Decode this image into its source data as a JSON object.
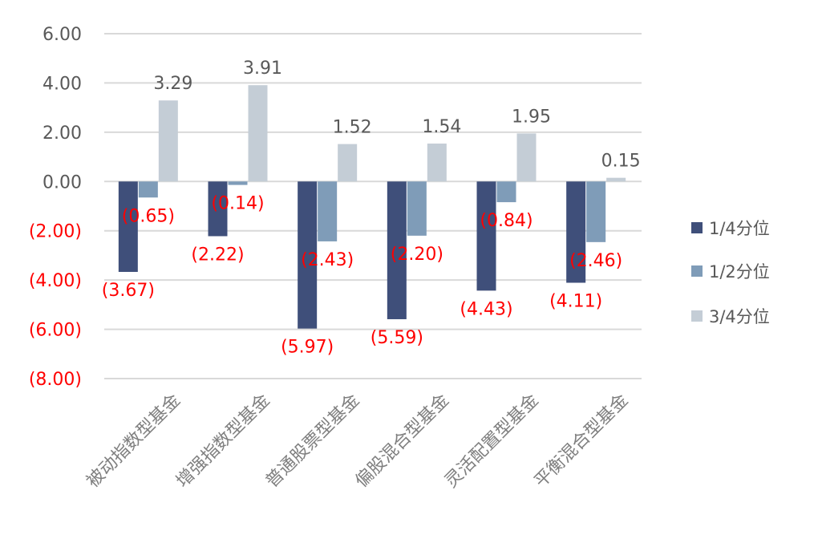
{
  "chart_data": {
    "type": "bar",
    "title": "",
    "xlabel": "",
    "ylabel": "",
    "ylim": [
      -8,
      6
    ],
    "y_ticks": [
      {
        "value": 6,
        "label": "6.00"
      },
      {
        "value": 4,
        "label": "4.00"
      },
      {
        "value": 2,
        "label": "2.00"
      },
      {
        "value": 0,
        "label": "0.00"
      },
      {
        "value": -2,
        "label": "(2.00)"
      },
      {
        "value": -4,
        "label": "(4.00)"
      },
      {
        "value": -6,
        "label": "(6.00)"
      },
      {
        "value": -8,
        "label": "(8.00)"
      }
    ],
    "categories": [
      "被动指数型基金",
      "增强指数型基金",
      "普通股票型基金",
      "偏股混合型基金",
      "灵活配置型基金",
      "平衡混合型基金"
    ],
    "series": [
      {
        "name": "1/4分位",
        "color": "#3f4f7a",
        "values": [
          -3.67,
          -2.22,
          -5.97,
          -5.59,
          -4.43,
          -4.11
        ],
        "labels": [
          "(3.67)",
          "(2.22)",
          "(5.97)",
          "(5.59)",
          "(4.43)",
          "(4.11)"
        ]
      },
      {
        "name": "1/2分位",
        "color": "#7f9cb8",
        "values": [
          -0.65,
          -0.14,
          -2.43,
          -2.2,
          -0.84,
          -2.46
        ],
        "labels": [
          "(0.65)",
          "(0.14)",
          "(2.43)",
          "(2.20)",
          "(0.84)",
          "(2.46)"
        ]
      },
      {
        "name": "3/4分位",
        "color": "#c4cdd6",
        "values": [
          3.29,
          3.91,
          1.52,
          1.54,
          1.95,
          0.15
        ],
        "labels": [
          "3.29",
          "3.91",
          "1.52",
          "1.54",
          "1.95",
          "0.15"
        ]
      }
    ],
    "colors": {
      "positive_text": "#595959",
      "negative_text": "#ff0000",
      "gridline": "#d9d9d9"
    },
    "grid": true,
    "legend_position": "right"
  }
}
